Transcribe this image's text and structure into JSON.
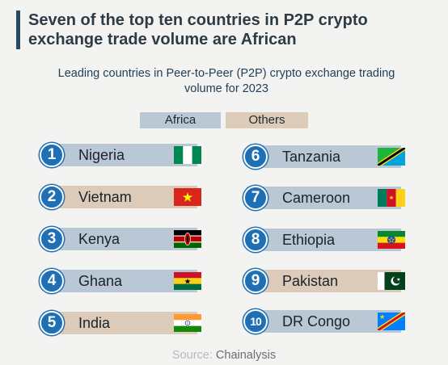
{
  "header": {
    "title": "Seven of the top ten countries in P2P crypto exchange trade volume are African",
    "subtitle": "Leading countries in Peer-to-Peer (P2P) crypto exchange trading volume for 2023"
  },
  "legend": {
    "africa": "Africa",
    "others": "Others",
    "colors": {
      "africa": "#b9c8d4",
      "others": "#dccbb8"
    }
  },
  "rankings": [
    {
      "rank": "1",
      "country": "Nigeria",
      "region": "africa",
      "flag": "nigeria-flag-icon"
    },
    {
      "rank": "2",
      "country": "Vietnam",
      "region": "others",
      "flag": "vietnam-flag-icon"
    },
    {
      "rank": "3",
      "country": "Kenya",
      "region": "africa",
      "flag": "kenya-flag-icon"
    },
    {
      "rank": "4",
      "country": "Ghana",
      "region": "africa",
      "flag": "ghana-flag-icon"
    },
    {
      "rank": "5",
      "country": "India",
      "region": "others",
      "flag": "india-flag-icon"
    },
    {
      "rank": "6",
      "country": "Tanzania",
      "region": "africa",
      "flag": "tanzania-flag-icon"
    },
    {
      "rank": "7",
      "country": "Cameroon",
      "region": "africa",
      "flag": "cameroon-flag-icon"
    },
    {
      "rank": "8",
      "country": "Ethiopia",
      "region": "africa",
      "flag": "ethiopia-flag-icon"
    },
    {
      "rank": "9",
      "country": "Pakistan",
      "region": "others",
      "flag": "pakistan-flag-icon"
    },
    {
      "rank": "10",
      "country": "DR Congo",
      "region": "africa",
      "flag": "drcongo-flag-icon"
    }
  ],
  "footer": {
    "source_label": "Source:",
    "source_name": "Chainalysis"
  }
}
